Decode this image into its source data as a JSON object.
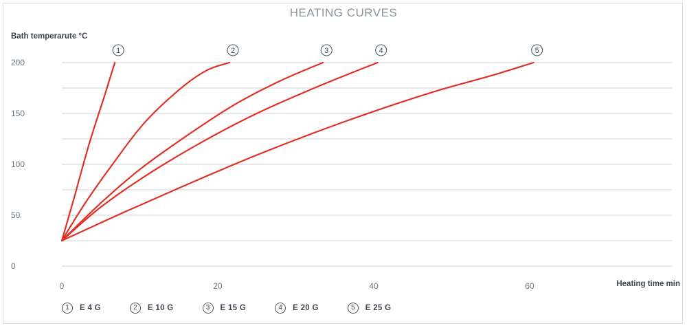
{
  "chart_data": {
    "type": "line",
    "title": "HEATING CURVES",
    "ylabel": "Bath temperarute °C",
    "xlabel": "Heating time min",
    "xlim": [
      0,
      80
    ],
    "ylim": [
      0,
      200
    ],
    "xticks": [
      0,
      20,
      40,
      60
    ],
    "yticks": [
      0,
      50,
      100,
      150,
      200
    ],
    "grid": true,
    "legend_position": "bottom-left",
    "line_color": "#e03127",
    "series": [
      {
        "id": "1",
        "name": "E 4 G",
        "points": [
          [
            0,
            25
          ],
          [
            1.5,
            65
          ],
          [
            3.5,
            120
          ],
          [
            5.5,
            168
          ],
          [
            6.8,
            200
          ]
        ]
      },
      {
        "id": "2",
        "name": "E 10 G",
        "points": [
          [
            0,
            25
          ],
          [
            3,
            62
          ],
          [
            6.5,
            100
          ],
          [
            10.5,
            140
          ],
          [
            15,
            173
          ],
          [
            18.5,
            192
          ],
          [
            21.5,
            200
          ]
        ]
      },
      {
        "id": "3",
        "name": "E 15 G",
        "points": [
          [
            0,
            25
          ],
          [
            5,
            62
          ],
          [
            10,
            95
          ],
          [
            16,
            128
          ],
          [
            22,
            158
          ],
          [
            28,
            182
          ],
          [
            33.5,
            200
          ]
        ]
      },
      {
        "id": "4",
        "name": "E 20 G",
        "points": [
          [
            0,
            25
          ],
          [
            5,
            58
          ],
          [
            11,
            90
          ],
          [
            18,
            122
          ],
          [
            25,
            150
          ],
          [
            33,
            177
          ],
          [
            40.5,
            200
          ]
        ]
      },
      {
        "id": "5",
        "name": "E 25 G",
        "points": [
          [
            0,
            25
          ],
          [
            8,
            53
          ],
          [
            16,
            80
          ],
          [
            24,
            106
          ],
          [
            32,
            130
          ],
          [
            40,
            152
          ],
          [
            48,
            172
          ],
          [
            55,
            187
          ],
          [
            60.5,
            200
          ]
        ]
      }
    ]
  }
}
